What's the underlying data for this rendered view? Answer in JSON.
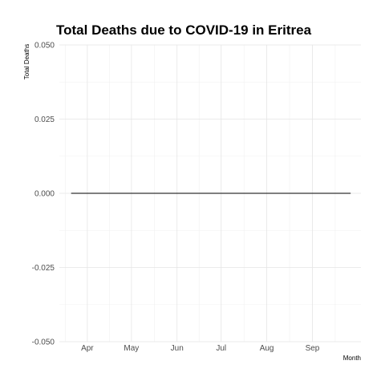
{
  "chart_data": {
    "type": "line",
    "title": "Total Deaths due to COVID-19 in Eritrea",
    "xlabel": "Month",
    "ylabel": "Total Deaths",
    "y_ticks": [
      -0.05,
      -0.025,
      0,
      0.025,
      0.05
    ],
    "y_tick_labels": [
      "-0.050",
      "-0.025",
      "0.000",
      "0.025",
      "0.050"
    ],
    "ylim": [
      -0.05,
      0.05
    ],
    "x_ticks": [
      "2020-04-01",
      "2020-05-01",
      "2020-06-01",
      "2020-07-01",
      "2020-08-01",
      "2020-09-01"
    ],
    "x_tick_labels": [
      "Apr",
      "May",
      "Jun",
      "Jul",
      "Aug",
      "Sep"
    ],
    "xlim": [
      "2020-03-13",
      "2020-10-04"
    ],
    "grid": true,
    "series": [
      {
        "x": [
          "2020-03-21",
          "2020-09-27"
        ],
        "y": [
          0,
          0
        ],
        "color": "#333333"
      }
    ]
  }
}
